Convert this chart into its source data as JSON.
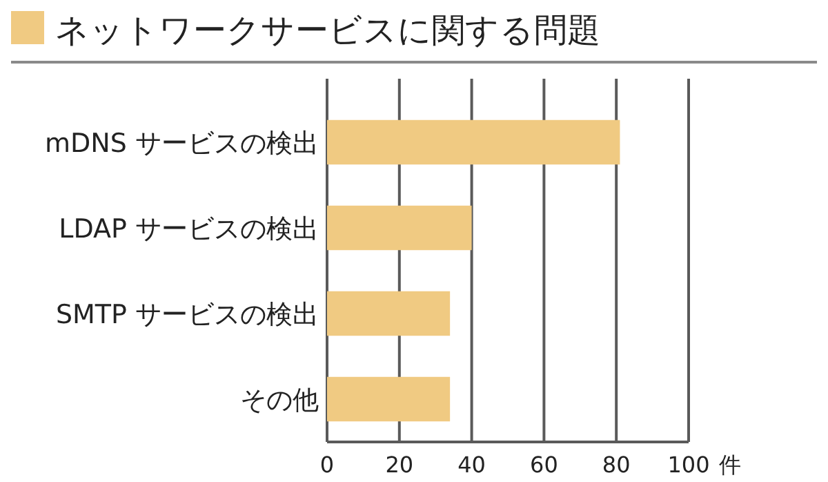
{
  "chart_data": {
    "type": "bar",
    "orientation": "horizontal",
    "title": "ネットワークサービスに関する問題",
    "xlabel": "件",
    "categories": [
      "mDNS サービスの検出",
      "LDAP サービスの検出",
      "SMTP サービスの検出",
      "その他"
    ],
    "values": [
      81,
      40,
      34,
      34
    ],
    "color": "#f0ca82",
    "xlim": [
      0,
      100
    ],
    "xticks": [
      0,
      20,
      40,
      60,
      80,
      100
    ],
    "grid": "x"
  }
}
